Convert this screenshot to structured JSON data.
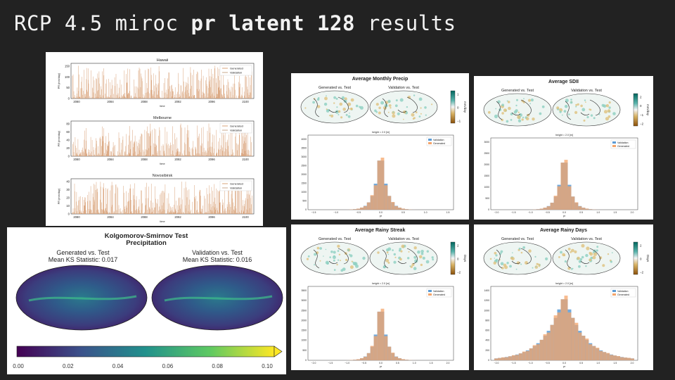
{
  "slide": {
    "title_prefix": "RCP 4.5 miroc ",
    "title_bold": "pr latent 128",
    "title_suffix": " results"
  },
  "timeseries": {
    "axis_ylabel": "PR (mm/day)",
    "axis_xlabel": "time",
    "legend": [
      "Generated",
      "Validation"
    ],
    "colors": {
      "generated": "#d9a37a",
      "validation": "#c9a98c"
    },
    "x_ticks": [
      "2080",
      "2084",
      "2088",
      "2092",
      "2096",
      "2100"
    ],
    "plots": [
      {
        "title": "Hawaii",
        "y_ticks": [
          "0",
          "50",
          "100",
          "150"
        ],
        "ymax": 150
      },
      {
        "title": "Melbourne",
        "y_ticks": [
          "0",
          "20",
          "40",
          "60",
          "80"
        ],
        "ymax": 80
      },
      {
        "title": "Novosibirsk",
        "y_ticks": [
          "0",
          "10",
          "20",
          "30",
          "40"
        ],
        "ymax": 40
      }
    ]
  },
  "ks_test": {
    "title": "Kolgomorov-Smirnov Test",
    "subtitle": "Precipitation",
    "left_label": "Generated vs. Test",
    "left_stat": "Mean KS Statistic: 0.017",
    "right_label": "Validation vs. Test",
    "right_stat": "Mean KS Statistic: 0.016",
    "colorbar_ticks": [
      "0.00",
      "0.02",
      "0.04",
      "0.06",
      "0.08",
      "0.10"
    ],
    "colorbar_range": [
      0.0,
      0.1
    ]
  },
  "panels": [
    {
      "key": "monthly",
      "title": "Average Monthly Precip",
      "units": "mm/day",
      "cb_ticks": [
        "1",
        "0",
        "−1"
      ],
      "hist_title": "height = 2.0 [m]",
      "legend": [
        "Validation",
        "Generated"
      ],
      "xlabel": "pr",
      "x_ticks": [
        "−1.5",
        "−1.0",
        "−0.5",
        "0.0",
        "0.5",
        "1.0",
        "1.5"
      ],
      "y_ticks": [
        "0",
        "500",
        "1000",
        "1500",
        "2000",
        "2500",
        "3000",
        "3500",
        "4000"
      ]
    },
    {
      "key": "sdii",
      "title": "Average SDII",
      "units": "mm/day",
      "cb_ticks": [
        "2",
        "0",
        "−1",
        "−2"
      ],
      "hist_title": "height = 2.0 [m]",
      "legend": [
        "Validation",
        "Generated"
      ],
      "xlabel": "pr",
      "x_ticks": [
        "−2.0",
        "−1.5",
        "−1.0",
        "−0.5",
        "0.0",
        "0.5",
        "1.0",
        "1.5",
        "2.0"
      ],
      "y_ticks": [
        "0",
        "500",
        "1000",
        "1500",
        "2000",
        "2500",
        "3000"
      ]
    },
    {
      "key": "streak",
      "title": "Average Rainy Streak",
      "units": "Days",
      "cb_ticks": [
        "2",
        "0",
        "−2"
      ],
      "hist_title": "height = 2.0 [m]",
      "legend": [
        "Validation",
        "Generated"
      ],
      "xlabel": "pr",
      "x_ticks": [
        "−2.0",
        "−1.5",
        "−1.0",
        "−0.5",
        "0.0",
        "0.5",
        "1.0",
        "1.5",
        "2.0"
      ],
      "y_ticks": [
        "0",
        "500",
        "1000",
        "1500",
        "2000",
        "2500",
        "3000",
        "3500"
      ]
    },
    {
      "key": "rainydays",
      "title": "Average Rainy Days",
      "units": "Days",
      "cb_ticks": [
        "2",
        "0",
        "−2"
      ],
      "hist_title": "height = 2.0 [m]",
      "legend": [
        "Validation",
        "Generated"
      ],
      "xlabel": "pr",
      "x_ticks": [
        "−2.0",
        "−1.5",
        "−1.0",
        "−0.5",
        "0.0",
        "0.5",
        "1.0",
        "1.5",
        "2.0"
      ],
      "y_ticks": [
        "0",
        "200",
        "400",
        "600",
        "800",
        "1000",
        "1200",
        "1400"
      ]
    }
  ],
  "map_labels": {
    "left": "Generated vs. Test",
    "right": "Validation vs. Test"
  },
  "colors": {
    "validation": "#5b9bd5",
    "generated": "#f4a46a",
    "overlap": "#c9a27e"
  }
}
